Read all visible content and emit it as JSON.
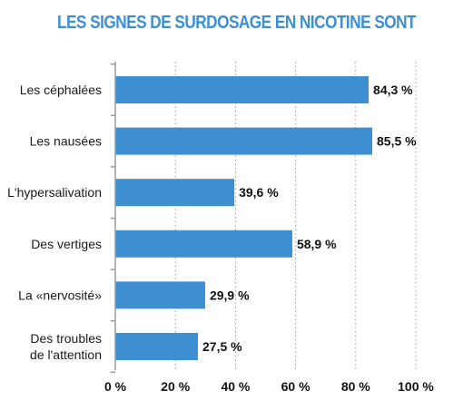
{
  "chart_data": {
    "type": "bar",
    "orientation": "horizontal",
    "title": "LES SIGNES DE SURDOSAGE EN NICOTINE SONT",
    "categories": [
      [
        "Les céphalées"
      ],
      [
        "Les nausées"
      ],
      [
        "L'hypersalivation"
      ],
      [
        "Des vertiges"
      ],
      [
        "La «nervosité»"
      ],
      [
        "Des troubles",
        "de l'attention"
      ]
    ],
    "values": [
      84.3,
      85.5,
      39.6,
      58.9,
      29.9,
      27.5
    ],
    "value_labels": [
      "84,3 %",
      "85,5 %",
      "39,6 %",
      "58,9 %",
      "29,9 %",
      "27,5 %"
    ],
    "xlim": [
      0,
      100
    ],
    "x_ticks": [
      0,
      20,
      40,
      60,
      80,
      100
    ],
    "x_tick_labels": [
      "0 %",
      "20 %",
      "40 %",
      "60 %",
      "80 %",
      "100 %"
    ],
    "grid": "vertical dotted",
    "bar_color": "#3d8fd1",
    "title_color": "#3d8fd1",
    "axis_color": "#9a9a9a"
  }
}
